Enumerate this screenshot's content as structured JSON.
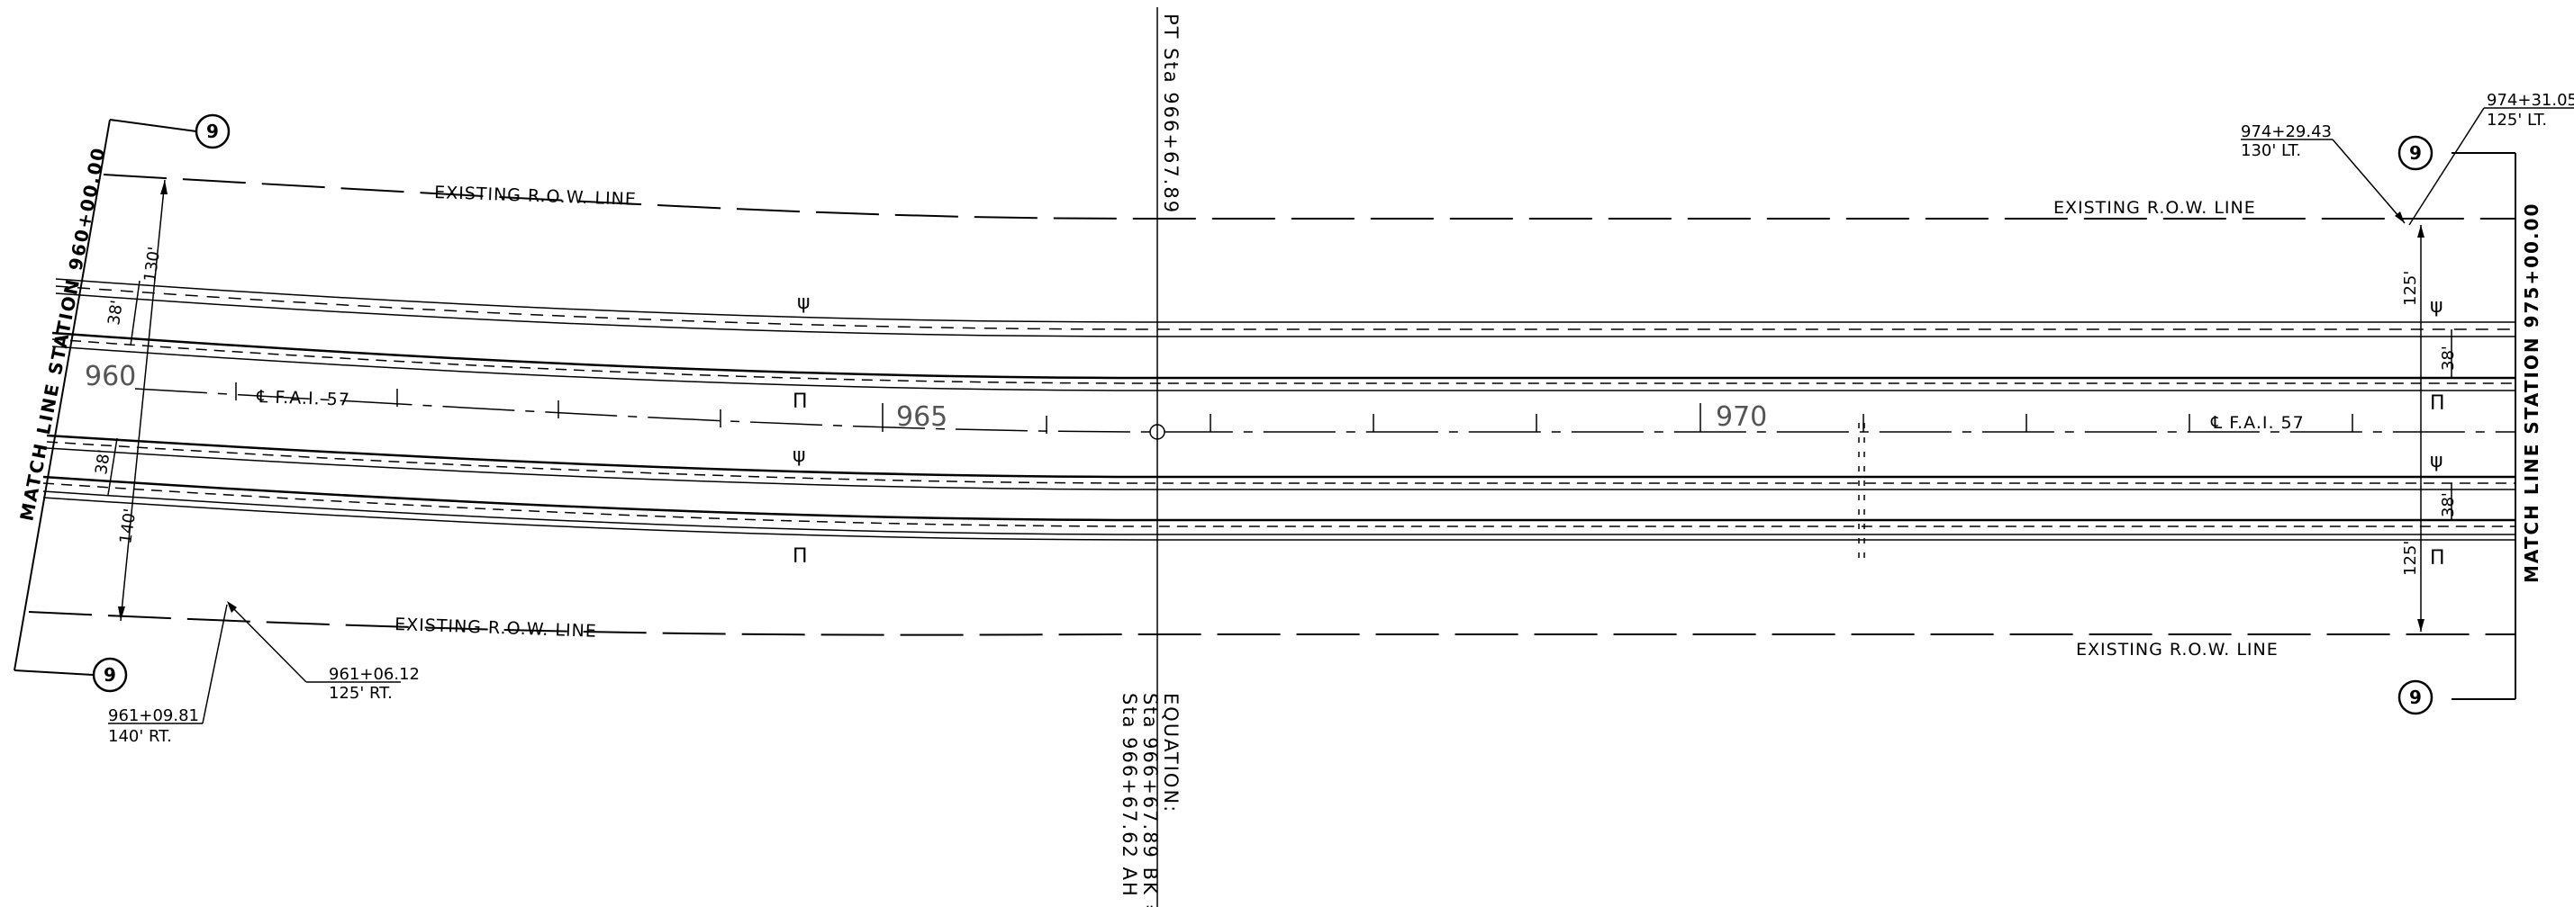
{
  "sheet_refs": [
    "9",
    "9",
    "9",
    "9"
  ],
  "match_lines": {
    "left": "MATCH LINE STATION 960+00.00",
    "right": "MATCH LINE STATION 975+00.00"
  },
  "row_labels": {
    "top_left": "EXISTING R.O.W. LINE",
    "top_right": "EXISTING R.O.W. LINE",
    "bottom_left": "EXISTING R.O.W. LINE",
    "bottom_right": "EXISTING R.O.W. LINE"
  },
  "centerline": {
    "label_left": "℄ F.A.I. 57",
    "label_right": "℄ F.A.I. 57",
    "stations": [
      "960",
      "965",
      "970"
    ]
  },
  "pt_station": "PT Sta 966+67.89",
  "equation": {
    "title": "EQUATION:",
    "line1": "Sta 966+67.89 BK =",
    "line2": "Sta 966+67.62 AH"
  },
  "dimensions": {
    "left_top_offset": "130'",
    "left_top_lane": "38'",
    "left_bottom_lane": "38'",
    "left_bottom_offset": "140'",
    "right_top_offset": "125'",
    "right_top_lane": "38'",
    "right_bottom_lane": "38'",
    "right_bottom_offset": "125'"
  },
  "callouts": {
    "c1": {
      "station": "974+29.43",
      "offset": "130' LT."
    },
    "c2": {
      "station": "974+31.05",
      "offset": "125' LT."
    },
    "c3": {
      "station": "961+06.12",
      "offset": "125' RT."
    },
    "c4": {
      "station": "961+09.81",
      "offset": "140' RT."
    }
  }
}
